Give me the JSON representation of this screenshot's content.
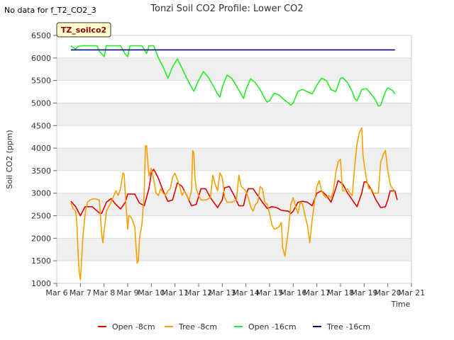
{
  "note": "No data for f_T2_CO2_3",
  "badge": "TZ_soilco2",
  "chart_data": {
    "type": "line",
    "title": "Tonzi Soil CO2 Profile: Lower CO2",
    "xlabel": "Time",
    "ylabel": "Soil CO2 (ppm)",
    "xlim": [
      6,
      21
    ],
    "ylim": [
      1000,
      6500
    ],
    "x_ticks": [
      6,
      7,
      8,
      9,
      10,
      11,
      12,
      13,
      14,
      15,
      16,
      17,
      18,
      19,
      20,
      21
    ],
    "x_tick_labels": [
      "Mar 6",
      "Mar 7",
      "Mar 8",
      "Mar 9",
      "Mar 10",
      "Mar 11",
      "Mar 12",
      "Mar 13",
      "Mar 14",
      "Mar 15",
      "Mar 16",
      "Mar 17",
      "Mar 18",
      "Mar 19",
      "Mar 20",
      "Mar 21"
    ],
    "y_ticks": [
      1000,
      1500,
      2000,
      2500,
      3000,
      3500,
      4000,
      4500,
      5000,
      5500,
      6000,
      6500
    ],
    "grid": "horizontal bands",
    "legend_position": "bottom",
    "series": [
      {
        "name": "Open -8cm",
        "color": "#dd0000",
        "points": [
          [
            6.6,
            2820
          ],
          [
            6.8,
            2700
          ],
          [
            7.0,
            2500
          ],
          [
            7.2,
            2700
          ],
          [
            7.5,
            2700
          ],
          [
            7.8,
            2560
          ],
          [
            7.9,
            2550
          ],
          [
            8.1,
            2800
          ],
          [
            8.3,
            2880
          ],
          [
            8.5,
            2750
          ],
          [
            8.7,
            2650
          ],
          [
            8.9,
            2800
          ],
          [
            9.0,
            2980
          ],
          [
            9.3,
            2980
          ],
          [
            9.5,
            2780
          ],
          [
            9.7,
            2720
          ],
          [
            9.9,
            3100
          ],
          [
            10.0,
            3450
          ],
          [
            10.1,
            3530
          ],
          [
            10.3,
            3330
          ],
          [
            10.5,
            3050
          ],
          [
            10.7,
            2820
          ],
          [
            10.9,
            2850
          ],
          [
            11.1,
            3230
          ],
          [
            11.3,
            3150
          ],
          [
            11.5,
            2950
          ],
          [
            11.7,
            2720
          ],
          [
            11.9,
            2750
          ],
          [
            12.1,
            3100
          ],
          [
            12.3,
            3100
          ],
          [
            12.5,
            2900
          ],
          [
            12.8,
            2680
          ],
          [
            13.0,
            2850
          ],
          [
            13.1,
            3120
          ],
          [
            13.3,
            3150
          ],
          [
            13.5,
            2950
          ],
          [
            13.7,
            2720
          ],
          [
            13.9,
            2720
          ],
          [
            14.0,
            2960
          ],
          [
            14.1,
            3100
          ],
          [
            14.3,
            3100
          ],
          [
            14.5,
            2950
          ],
          [
            14.7,
            2800
          ],
          [
            14.9,
            2660
          ],
          [
            15.1,
            2700
          ],
          [
            15.3,
            2680
          ],
          [
            15.5,
            2620
          ],
          [
            15.8,
            2600
          ],
          [
            15.9,
            2550
          ],
          [
            16.0,
            2600
          ],
          [
            16.2,
            2800
          ],
          [
            16.4,
            2820
          ],
          [
            16.6,
            2800
          ],
          [
            16.8,
            2720
          ],
          [
            17.0,
            3000
          ],
          [
            17.2,
            3050
          ],
          [
            17.4,
            2950
          ],
          [
            17.6,
            2800
          ],
          [
            17.8,
            3100
          ],
          [
            17.9,
            3280
          ],
          [
            18.1,
            3200
          ],
          [
            18.3,
            3000
          ],
          [
            18.5,
            2850
          ],
          [
            18.7,
            2700
          ],
          [
            18.9,
            3000
          ],
          [
            19.0,
            3250
          ],
          [
            19.1,
            3250
          ],
          [
            19.3,
            3080
          ],
          [
            19.5,
            2850
          ],
          [
            19.7,
            2680
          ],
          [
            19.9,
            2700
          ],
          [
            20.0,
            2850
          ],
          [
            20.1,
            3050
          ],
          [
            20.3,
            3050
          ],
          [
            20.4,
            2850
          ]
        ]
      },
      {
        "name": "Tree -8cm",
        "color": "#f5a000",
        "points": [
          [
            6.6,
            2780
          ],
          [
            6.7,
            2650
          ],
          [
            6.8,
            2600
          ],
          [
            6.85,
            2350
          ],
          [
            6.9,
            1700
          ],
          [
            6.95,
            1250
          ],
          [
            7.0,
            1080
          ],
          [
            7.05,
            1500
          ],
          [
            7.1,
            2000
          ],
          [
            7.2,
            2550
          ],
          [
            7.3,
            2800
          ],
          [
            7.4,
            2850
          ],
          [
            7.6,
            2880
          ],
          [
            7.8,
            2850
          ],
          [
            7.9,
            2100
          ],
          [
            7.95,
            1900
          ],
          [
            8.0,
            2150
          ],
          [
            8.1,
            2600
          ],
          [
            8.2,
            2700
          ],
          [
            8.3,
            2800
          ],
          [
            8.5,
            3050
          ],
          [
            8.6,
            2950
          ],
          [
            8.7,
            3100
          ],
          [
            8.8,
            3450
          ],
          [
            8.85,
            3420
          ],
          [
            8.9,
            2950
          ],
          [
            9.0,
            2200
          ],
          [
            9.05,
            2500
          ],
          [
            9.1,
            2500
          ],
          [
            9.2,
            2400
          ],
          [
            9.3,
            2250
          ],
          [
            9.4,
            1450
          ],
          [
            9.45,
            1500
          ],
          [
            9.5,
            2000
          ],
          [
            9.6,
            2300
          ],
          [
            9.7,
            3000
          ],
          [
            9.75,
            4050
          ],
          [
            9.8,
            4050
          ],
          [
            9.85,
            3700
          ],
          [
            9.9,
            3380
          ],
          [
            10.0,
            3550
          ],
          [
            10.1,
            3300
          ],
          [
            10.2,
            3000
          ],
          [
            10.3,
            2950
          ],
          [
            10.4,
            3100
          ],
          [
            10.5,
            3000
          ],
          [
            10.6,
            2950
          ],
          [
            10.7,
            3050
          ],
          [
            10.8,
            3100
          ],
          [
            10.9,
            3350
          ],
          [
            11.0,
            3440
          ],
          [
            11.1,
            3300
          ],
          [
            11.2,
            3150
          ],
          [
            11.3,
            2950
          ],
          [
            11.4,
            3050
          ],
          [
            11.5,
            2950
          ],
          [
            11.6,
            2850
          ],
          [
            11.7,
            3050
          ],
          [
            11.75,
            3950
          ],
          [
            11.8,
            3900
          ],
          [
            11.85,
            3300
          ],
          [
            11.9,
            3100
          ],
          [
            12.0,
            2950
          ],
          [
            12.1,
            2850
          ],
          [
            12.3,
            2850
          ],
          [
            12.5,
            2900
          ],
          [
            12.6,
            3400
          ],
          [
            12.7,
            3200
          ],
          [
            12.8,
            3050
          ],
          [
            12.9,
            3450
          ],
          [
            13.0,
            3350
          ],
          [
            13.1,
            2900
          ],
          [
            13.2,
            2800
          ],
          [
            13.4,
            2800
          ],
          [
            13.6,
            2850
          ],
          [
            13.7,
            3400
          ],
          [
            13.8,
            3150
          ],
          [
            13.9,
            3100
          ],
          [
            14.0,
            3050
          ],
          [
            14.1,
            2900
          ],
          [
            14.2,
            2700
          ],
          [
            14.3,
            2600
          ],
          [
            14.4,
            2750
          ],
          [
            14.5,
            2800
          ],
          [
            14.6,
            3150
          ],
          [
            14.7,
            3100
          ],
          [
            14.8,
            2800
          ],
          [
            14.9,
            2750
          ],
          [
            15.0,
            2550
          ],
          [
            15.1,
            2300
          ],
          [
            15.2,
            2200
          ],
          [
            15.4,
            2250
          ],
          [
            15.5,
            2350
          ],
          [
            15.55,
            1800
          ],
          [
            15.6,
            1700
          ],
          [
            15.65,
            1600
          ],
          [
            15.7,
            1800
          ],
          [
            15.8,
            2200
          ],
          [
            15.9,
            2750
          ],
          [
            16.0,
            2900
          ],
          [
            16.1,
            2700
          ],
          [
            16.2,
            2550
          ],
          [
            16.3,
            2800
          ],
          [
            16.4,
            2750
          ],
          [
            16.5,
            2500
          ],
          [
            16.6,
            2300
          ],
          [
            16.7,
            1900
          ],
          [
            16.8,
            2400
          ],
          [
            16.9,
            2800
          ],
          [
            17.0,
            3150
          ],
          [
            17.1,
            3280
          ],
          [
            17.2,
            3050
          ],
          [
            17.3,
            2950
          ],
          [
            17.4,
            2900
          ],
          [
            17.5,
            2950
          ],
          [
            17.6,
            2900
          ],
          [
            17.7,
            3050
          ],
          [
            17.8,
            3450
          ],
          [
            17.9,
            3700
          ],
          [
            18.0,
            3750
          ],
          [
            18.05,
            3300
          ],
          [
            18.1,
            3050
          ],
          [
            18.2,
            3050
          ],
          [
            18.3,
            3100
          ],
          [
            18.4,
            3000
          ],
          [
            18.5,
            2950
          ],
          [
            18.6,
            3600
          ],
          [
            18.7,
            4100
          ],
          [
            18.8,
            4350
          ],
          [
            18.9,
            4450
          ],
          [
            18.95,
            3850
          ],
          [
            19.0,
            3650
          ],
          [
            19.1,
            3300
          ],
          [
            19.2,
            3100
          ],
          [
            19.3,
            3100
          ],
          [
            19.4,
            3000
          ],
          [
            19.5,
            3000
          ],
          [
            19.6,
            3000
          ],
          [
            19.7,
            3700
          ],
          [
            19.75,
            3750
          ],
          [
            19.8,
            3850
          ],
          [
            19.9,
            3950
          ],
          [
            20.0,
            3500
          ],
          [
            20.1,
            3200
          ],
          [
            20.2,
            3100
          ],
          [
            20.3,
            3050
          ]
        ]
      },
      {
        "name": "Open -16cm",
        "color": "#22ee22",
        "points": [
          [
            6.6,
            6270
          ],
          [
            6.7,
            6230
          ],
          [
            6.8,
            6200
          ],
          [
            6.9,
            6260
          ],
          [
            7.1,
            6270
          ],
          [
            7.5,
            6270
          ],
          [
            7.7,
            6270
          ],
          [
            7.8,
            6150
          ],
          [
            8.0,
            6030
          ],
          [
            8.1,
            6270
          ],
          [
            8.5,
            6270
          ],
          [
            8.7,
            6270
          ],
          [
            8.9,
            6080
          ],
          [
            9.0,
            6030
          ],
          [
            9.1,
            6270
          ],
          [
            9.5,
            6270
          ],
          [
            9.6,
            6270
          ],
          [
            9.8,
            6100
          ],
          [
            9.9,
            6270
          ],
          [
            10.0,
            6270
          ],
          [
            10.1,
            6270
          ],
          [
            10.3,
            6000
          ],
          [
            10.5,
            5800
          ],
          [
            10.7,
            5550
          ],
          [
            10.9,
            5800
          ],
          [
            11.1,
            5980
          ],
          [
            11.3,
            5770
          ],
          [
            11.5,
            5550
          ],
          [
            11.7,
            5350
          ],
          [
            11.8,
            5260
          ],
          [
            12.0,
            5500
          ],
          [
            12.2,
            5700
          ],
          [
            12.4,
            5580
          ],
          [
            12.6,
            5400
          ],
          [
            12.8,
            5200
          ],
          [
            12.9,
            5130
          ],
          [
            13.0,
            5350
          ],
          [
            13.2,
            5620
          ],
          [
            13.4,
            5550
          ],
          [
            13.6,
            5380
          ],
          [
            13.8,
            5200
          ],
          [
            13.9,
            5100
          ],
          [
            14.0,
            5300
          ],
          [
            14.2,
            5540
          ],
          [
            14.4,
            5450
          ],
          [
            14.6,
            5300
          ],
          [
            14.8,
            5100
          ],
          [
            14.9,
            5020
          ],
          [
            15.0,
            5050
          ],
          [
            15.2,
            5220
          ],
          [
            15.4,
            5180
          ],
          [
            15.6,
            5080
          ],
          [
            15.8,
            5000
          ],
          [
            15.9,
            4950
          ],
          [
            16.0,
            5000
          ],
          [
            16.2,
            5260
          ],
          [
            16.4,
            5300
          ],
          [
            16.6,
            5250
          ],
          [
            16.8,
            5200
          ],
          [
            17.0,
            5400
          ],
          [
            17.2,
            5550
          ],
          [
            17.4,
            5500
          ],
          [
            17.6,
            5300
          ],
          [
            17.8,
            5250
          ],
          [
            18.0,
            5550
          ],
          [
            18.1,
            5560
          ],
          [
            18.3,
            5450
          ],
          [
            18.5,
            5250
          ],
          [
            18.6,
            5100
          ],
          [
            18.7,
            5050
          ],
          [
            18.9,
            5300
          ],
          [
            19.1,
            5320
          ],
          [
            19.3,
            5200
          ],
          [
            19.5,
            5050
          ],
          [
            19.6,
            4930
          ],
          [
            19.7,
            4950
          ],
          [
            19.9,
            5250
          ],
          [
            20.0,
            5340
          ],
          [
            20.2,
            5280
          ],
          [
            20.3,
            5200
          ]
        ]
      },
      {
        "name": "Tree -16cm",
        "color": "#00008b",
        "points": [
          [
            6.6,
            6180
          ],
          [
            20.3,
            6180
          ]
        ]
      }
    ]
  }
}
